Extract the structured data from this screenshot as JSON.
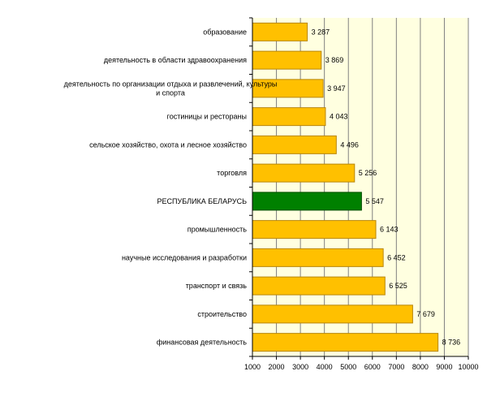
{
  "chart_data": {
    "type": "bar",
    "orientation": "horizontal",
    "title": "",
    "xlabel": "",
    "ylabel": "",
    "xlim": [
      1000,
      10000
    ],
    "x_ticks": [
      1000,
      2000,
      3000,
      4000,
      5000,
      6000,
      7000,
      8000,
      9000,
      10000
    ],
    "grid": true,
    "categories": [
      "образование",
      "деятельность в области здравоохранения",
      "деятельность по организации отдыха и развлечений, культуры и спорта",
      "гостиницы и рестораны",
      "сельское хозяйство, охота и лесное хозяйство",
      "торговля",
      "РЕСПУБЛИКА БЕЛАРУСЬ",
      "промышленность",
      "научные исследования и разработки",
      "транспорт и связь",
      "строительство",
      "финансовая деятельность"
    ],
    "category_label_lines": [
      [
        "образование"
      ],
      [
        "деятельность в области здравоохранения"
      ],
      [
        "деятельность по организации отдыха и развлечений, культуры",
        "и спорта"
      ],
      [
        "гостиницы и рестораны"
      ],
      [
        "сельское хозяйство, охота и лесное хозяйство"
      ],
      [
        "торговля"
      ],
      [
        "РЕСПУБЛИКА БЕЛАРУСЬ"
      ],
      [
        "промышленность"
      ],
      [
        "научные исследования и разработки"
      ],
      [
        "транспорт и связь"
      ],
      [
        "строительство"
      ],
      [
        "финансовая деятельность"
      ]
    ],
    "values": [
      3287,
      3869,
      3947,
      4043,
      4496,
      5256,
      5547,
      6143,
      6452,
      6525,
      7679,
      8736
    ],
    "value_labels": [
      "3 287",
      "3 869",
      "3 947",
      "4 043",
      "4 496",
      "5 256",
      "5 547",
      "6 143",
      "6 452",
      "6 525",
      "7 679",
      "8 736"
    ],
    "highlight_index": 6,
    "colors": {
      "bar": "#ffc000",
      "bar_edge": "#b8860b",
      "highlight_bar": "#008000",
      "highlight_edge": "#004d00",
      "plot_background": "#ffffe0",
      "grid": "#808080",
      "axis": "#000000"
    }
  }
}
